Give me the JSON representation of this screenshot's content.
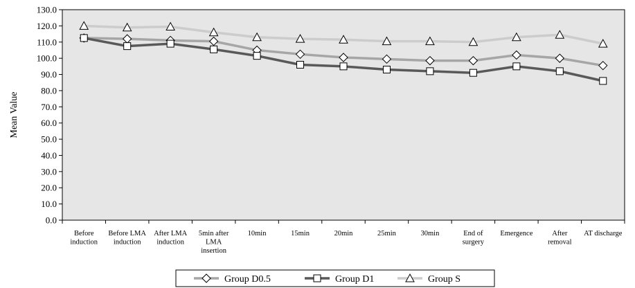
{
  "chart_data": {
    "type": "line",
    "title": "",
    "xlabel": "",
    "ylabel": "Mean Value",
    "ylim": [
      0,
      130
    ],
    "ytick_step": 10,
    "ytick_labels": [
      "0.0",
      "10.0",
      "20.0",
      "30.0",
      "40.0",
      "50.0",
      "60.0",
      "70.0",
      "80.0",
      "90.0",
      "100.0",
      "110.0",
      "120.0",
      "130.0"
    ],
    "grid": false,
    "legend_position": "bottom",
    "categories": [
      [
        "Before",
        "induction"
      ],
      [
        "Before LMA",
        "induction"
      ],
      [
        "After LMA",
        "induction"
      ],
      [
        "5min after",
        "LMA",
        "insertion"
      ],
      [
        "10min"
      ],
      [
        "15min"
      ],
      [
        "20min"
      ],
      [
        "25min"
      ],
      [
        "30min"
      ],
      [
        "End of",
        "surgery"
      ],
      [
        "Emergence"
      ],
      [
        "After",
        "removal"
      ],
      [
        "AT discharge"
      ]
    ],
    "series": [
      {
        "name": "Group D0.5",
        "marker": "diamond",
        "color": "#a6a6a6",
        "values": [
          112.5,
          112.0,
          111.0,
          110.5,
          105.0,
          102.5,
          100.5,
          99.5,
          98.5,
          98.5,
          102.0,
          100.0,
          95.5
        ]
      },
      {
        "name": "Group D1",
        "marker": "square",
        "color": "#595959",
        "values": [
          112.5,
          107.5,
          109.0,
          105.5,
          101.5,
          96.0,
          95.0,
          93.0,
          92.0,
          91.0,
          95.0,
          92.0,
          86.0
        ]
      },
      {
        "name": "Group S",
        "marker": "triangle",
        "color": "#cccccc",
        "values": [
          120.0,
          119.0,
          119.5,
          116.0,
          113.0,
          112.0,
          111.5,
          110.5,
          110.5,
          110.0,
          113.0,
          114.5,
          109.0
        ]
      }
    ],
    "plot_background": "#e6e6e6"
  }
}
